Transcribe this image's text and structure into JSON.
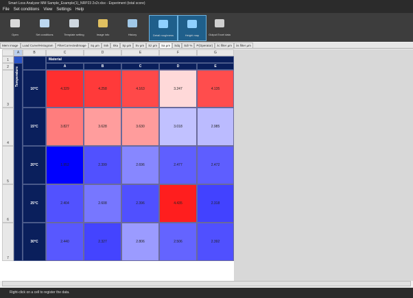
{
  "window": {
    "title": "Smart Loss Analyzer MM Sample_Example(1)_NRP23 2x2r.xlsx - Experiment (total score)"
  },
  "menu": [
    "File",
    "Set conditions",
    "View",
    "Settings",
    "Help"
  ],
  "toolbar": [
    "Open",
    "Set conditions",
    "Template setting",
    "Image info",
    "History",
    "Detail roughness",
    "Height map",
    "Output Excel data"
  ],
  "tabs": [
    "Mem image",
    "Load Curve/Histogram",
    "FilterCorrectedImage",
    "Sq µm",
    "Ssk",
    "Sku",
    "Sp µm",
    "Sv µm",
    "Sz µm",
    "Sa µm",
    "Sdq",
    "Sdr %",
    "P(Operator)",
    "λc filter µm",
    "λs filter µm"
  ],
  "sheet": {
    "columns": [
      "A",
      "B",
      "C",
      "D",
      "E",
      "F",
      "G"
    ],
    "rows": [
      "1",
      "2",
      "3",
      "4",
      "5",
      "6",
      "7"
    ],
    "col_header": "Material",
    "row_header": "Temperature",
    "materials": [
      "A",
      "B",
      "C",
      "D",
      "E"
    ],
    "temperatures": [
      "10°C",
      "15°C",
      "20°C",
      "25°C",
      "30°C"
    ],
    "values": [
      [
        "4.329",
        "4.258",
        "4.163",
        "3.247",
        "4.135"
      ],
      [
        "3.827",
        "3.628",
        "3.630",
        "3.018",
        "2.985"
      ],
      [
        "1.952",
        "2.399",
        "2.696",
        "2.477",
        "2.472"
      ],
      [
        "2.404",
        "2.608",
        "2.396",
        "4.435",
        "2.318"
      ],
      [
        "2.440",
        "2.327",
        "2.806",
        "2.506",
        "2.392"
      ]
    ]
  },
  "status": "Right-click on a cell to register the data."
}
